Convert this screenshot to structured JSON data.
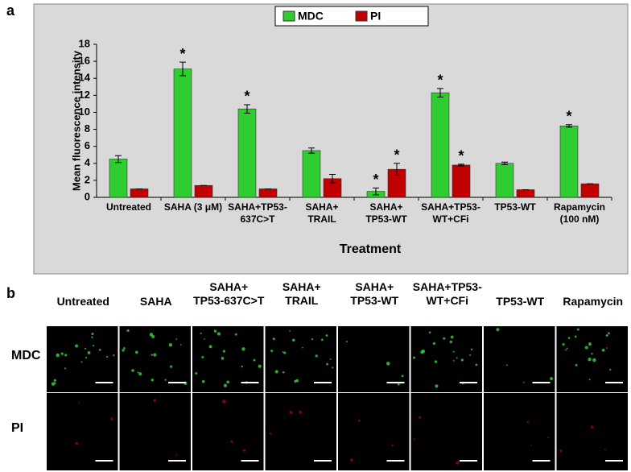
{
  "panel_a": {
    "label": "a"
  },
  "chart_data": {
    "type": "bar",
    "categories": [
      "Untreated",
      "SAHA (3 μM)",
      "SAHA+TP53-\n637C>T",
      "SAHA+\nTRAIL",
      "SAHA+\nTP53-WT",
      "SAHA+TP53-\nWT+CFi",
      "TP53-WT",
      "Rapamycin\n(100 nM)"
    ],
    "series": [
      {
        "name": "MDC",
        "color": "#2ecc2e",
        "values": [
          4.5,
          15.1,
          10.4,
          5.5,
          0.7,
          12.3,
          4.0,
          8.4
        ],
        "errors": [
          0.4,
          0.8,
          0.5,
          0.3,
          0.4,
          0.5,
          0.15,
          0.15
        ],
        "annotations": [
          null,
          "*",
          "*",
          null,
          "*",
          "*",
          null,
          "*"
        ]
      },
      {
        "name": "PI",
        "color": "#c00000",
        "values": [
          1.0,
          1.4,
          1.0,
          2.2,
          3.3,
          3.8,
          0.9,
          1.6
        ],
        "errors": [
          0,
          0,
          0,
          0.5,
          0.7,
          0.1,
          0,
          0
        ],
        "annotations": [
          null,
          null,
          null,
          null,
          "*",
          "*",
          null,
          null
        ]
      }
    ],
    "x_label": "Treatment",
    "y_label": "Mean fluorescence intensity",
    "ylim": [
      0,
      18
    ],
    "yticks": [
      0,
      2,
      4,
      6,
      8,
      10,
      12,
      14,
      16,
      18
    ],
    "legend": "top"
  },
  "panel_b": {
    "label": "b",
    "columns": [
      "Untreated",
      "SAHA",
      "SAHA+\nTP53-637C>T",
      "SAHA+\nTRAIL",
      "SAHA+\nTP53-WT",
      "SAHA+TP53-\nWT+CFi",
      "TP53-WT",
      "Rapamycin"
    ],
    "rows": [
      "MDC",
      "PI"
    ]
  }
}
